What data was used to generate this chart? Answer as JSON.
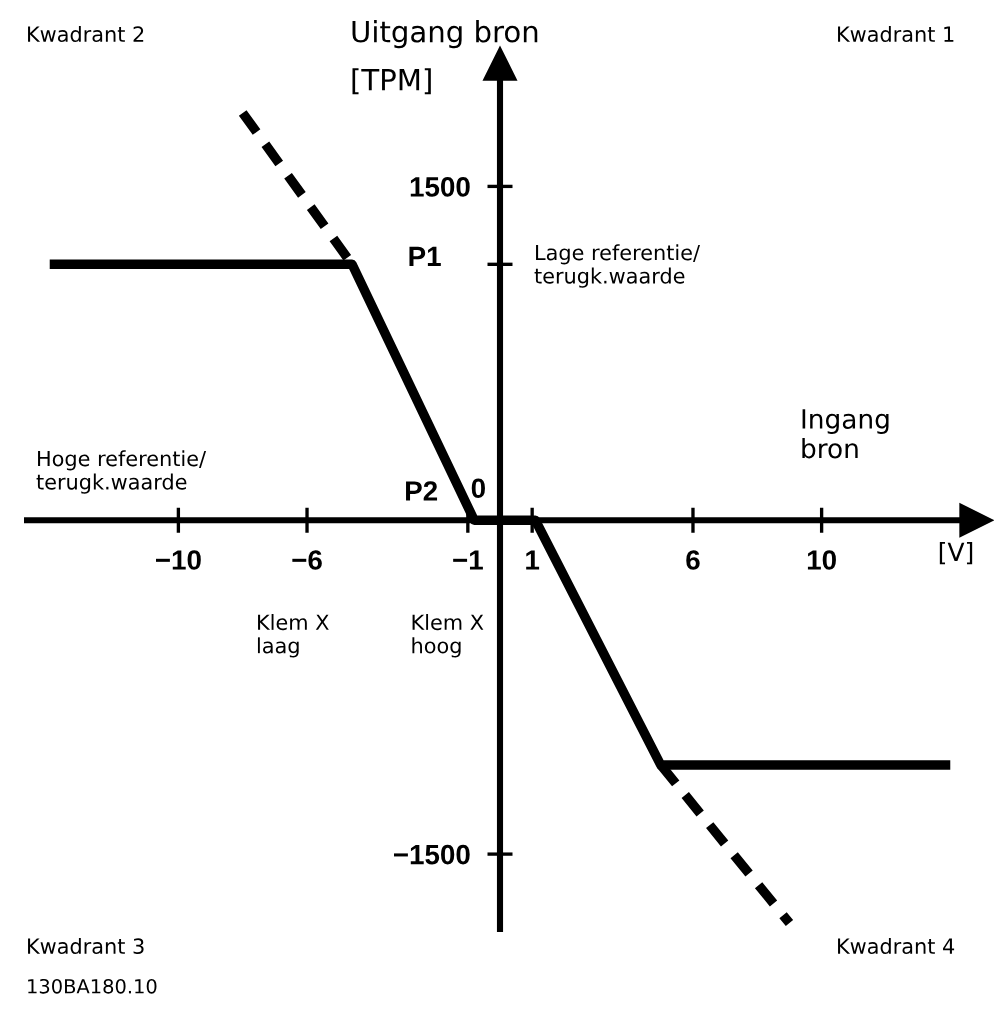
{
  "chart_data": {
    "type": "line",
    "xlabel": "Ingang\nbron",
    "ylabel": "Uitgang bron\n[TPM]",
    "series": [
      {
        "color": "#000000",
        "line_style": "solid",
        "x": [
          -14,
          -4.6,
          -0.8,
          1.1,
          5,
          14
        ],
        "values": [
          1150,
          1150,
          0,
          0,
          -1100,
          -1100
        ]
      },
      {
        "color": "#000000",
        "line_style": "dashed",
        "x": [
          -8,
          -4.6
        ],
        "values": [
          1830,
          1150
        ]
      },
      {
        "color": "#000000",
        "line_style": "dashed",
        "x": [
          5,
          9
        ],
        "values": [
          -1100,
          -1810
        ]
      }
    ],
    "xlim": [
      -14.8,
      14.8
    ],
    "ylim": [
      -1850,
      2050
    ],
    "xticks": [
      -10,
      -6,
      -1,
      1,
      6,
      10
    ],
    "yticks": [
      1500,
      {
        "value": 1150,
        "label": null
      },
      -1500
    ],
    "marker": "none",
    "annotations": [
      "Kwadrant 2",
      "Kwadrant 1",
      "Kwadrant 3",
      "Kwadrant 4",
      "Lage referentie/\nterugk.waarde",
      "Hoge referentie/\nterugk.waarde",
      {
        "text": "P1",
        "x": -4.6,
        "y": 1150
      },
      {
        "text": "P2",
        "x": -0.8,
        "y": 0
      },
      {
        "text": "0",
        "x": 0,
        "y": 0
      },
      "Klem X\nlaag",
      "Klem X\nhoog",
      "[V]",
      "130BA180.10"
    ]
  }
}
